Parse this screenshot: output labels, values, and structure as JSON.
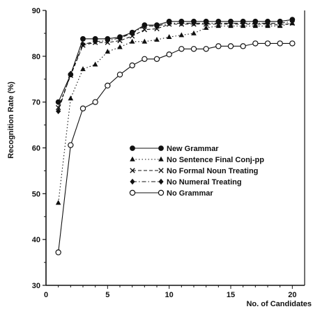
{
  "chart_data": {
    "type": "line",
    "title": "",
    "xlabel": "No. of Candidates",
    "ylabel": "Recognition Rate (%)",
    "xlim": [
      0,
      21
    ],
    "ylim": [
      30,
      90
    ],
    "xticks": [
      0,
      5,
      10,
      15,
      20
    ],
    "yticks": [
      30,
      40,
      50,
      60,
      70,
      80,
      90
    ],
    "grid": false,
    "legend_position": "center",
    "x": [
      1,
      2,
      3,
      4,
      5,
      6,
      7,
      8,
      9,
      10,
      11,
      12,
      13,
      14,
      15,
      16,
      17,
      18,
      19,
      20
    ],
    "series": [
      {
        "name": "New Grammar",
        "marker": "filled-circle",
        "dash": "solid",
        "values": [
          70.0,
          76.0,
          83.8,
          83.8,
          83.8,
          84.2,
          85.2,
          86.8,
          86.8,
          87.6,
          87.6,
          87.6,
          87.6,
          87.6,
          87.6,
          87.6,
          87.6,
          87.6,
          87.6,
          88.0
        ]
      },
      {
        "name": "No Sentence Final Conj-pp",
        "marker": "triangle",
        "dash": "dotted",
        "values": [
          48.0,
          70.8,
          77.2,
          78.2,
          81.0,
          82.0,
          83.2,
          83.2,
          83.6,
          84.2,
          84.6,
          85.0,
          86.2,
          86.6,
          86.6,
          86.6,
          86.6,
          86.6,
          86.6,
          87.2
        ]
      },
      {
        "name": "No Formal Noun Treating",
        "marker": "x",
        "dash": "dashed",
        "values": [
          68.8,
          75.8,
          82.4,
          83.0,
          83.0,
          83.4,
          84.4,
          85.8,
          86.0,
          87.0,
          87.0,
          87.0,
          87.0,
          87.0,
          87.0,
          87.0,
          87.0,
          87.0,
          86.8,
          87.2
        ]
      },
      {
        "name": "No Numeral Treating",
        "marker": "diamond",
        "dash": "dashdot",
        "values": [
          68.0,
          76.2,
          82.6,
          83.2,
          83.4,
          84.0,
          85.0,
          86.6,
          86.6,
          87.2,
          87.2,
          87.2,
          87.2,
          87.2,
          87.2,
          87.2,
          87.2,
          87.2,
          87.2,
          87.6
        ]
      },
      {
        "name": "No Grammar",
        "marker": "open-circle",
        "dash": "solid",
        "values": [
          37.2,
          60.6,
          68.6,
          70.0,
          73.6,
          76.0,
          78.0,
          79.4,
          79.4,
          80.4,
          81.6,
          81.6,
          81.6,
          82.2,
          82.2,
          82.2,
          82.8,
          82.8,
          82.8,
          82.8
        ]
      }
    ]
  }
}
